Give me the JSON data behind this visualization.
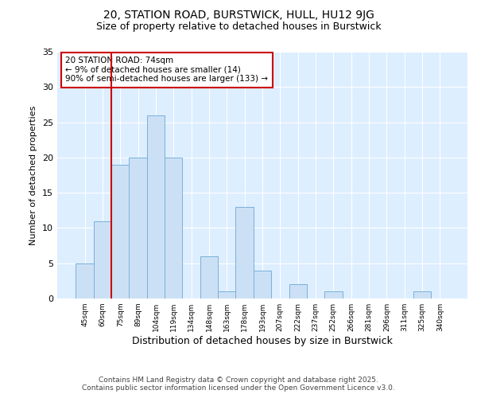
{
  "title1": "20, STATION ROAD, BURSTWICK, HULL, HU12 9JG",
  "title2": "Size of property relative to detached houses in Burstwick",
  "xlabel": "Distribution of detached houses by size in Burstwick",
  "ylabel": "Number of detached properties",
  "categories": [
    "45sqm",
    "60sqm",
    "75sqm",
    "89sqm",
    "104sqm",
    "119sqm",
    "134sqm",
    "148sqm",
    "163sqm",
    "178sqm",
    "193sqm",
    "207sqm",
    "222sqm",
    "237sqm",
    "252sqm",
    "266sqm",
    "281sqm",
    "296sqm",
    "311sqm",
    "325sqm",
    "340sqm"
  ],
  "values": [
    5,
    11,
    19,
    20,
    26,
    20,
    0,
    6,
    1,
    13,
    4,
    0,
    2,
    0,
    1,
    0,
    0,
    0,
    0,
    1,
    0
  ],
  "bar_color": "#cce0f5",
  "bar_edge_color": "#7ab0d8",
  "vline_color": "#cc0000",
  "vline_pos": 2,
  "annotation_text": "20 STATION ROAD: 74sqm\n← 9% of detached houses are smaller (14)\n90% of semi-detached houses are larger (133) →",
  "annotation_box_color": "white",
  "annotation_box_edge_color": "#cc0000",
  "ylim": [
    0,
    35
  ],
  "yticks": [
    0,
    5,
    10,
    15,
    20,
    25,
    30,
    35
  ],
  "footer1": "Contains HM Land Registry data © Crown copyright and database right 2025.",
  "footer2": "Contains public sector information licensed under the Open Government Licence v3.0.",
  "fig_bg_color": "#ffffff",
  "plot_bg_color": "#ddeeff",
  "grid_color": "white",
  "title1_fontsize": 10,
  "title2_fontsize": 9
}
